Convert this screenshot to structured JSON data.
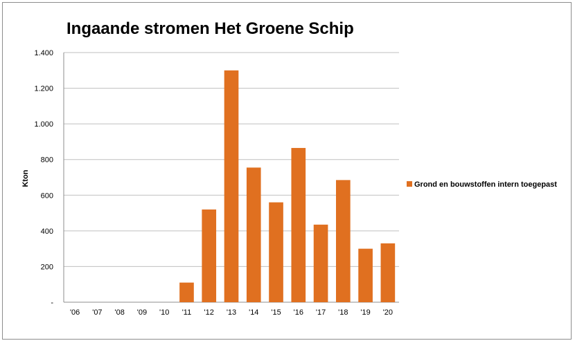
{
  "chart_data": {
    "type": "bar",
    "title": "Ingaande stromen Het Groene Schip",
    "xlabel": "",
    "ylabel": "Kton",
    "categories": [
      "'06",
      "'07",
      "'08",
      "'09",
      "'10",
      "'11",
      "'12",
      "'13",
      "'14",
      "'15",
      "'16",
      "'17",
      "'18",
      "'19",
      "'20"
    ],
    "series": [
      {
        "name": "Grond en bouwstoffen intern toegepast",
        "color": "#e07020",
        "values": [
          0,
          0,
          0,
          0,
          0,
          110,
          520,
          1300,
          755,
          560,
          865,
          435,
          685,
          300,
          330
        ]
      }
    ],
    "ylim": [
      0,
      1400
    ],
    "yticks": [
      0,
      200,
      400,
      600,
      800,
      1000,
      1200,
      1400
    ],
    "ytick_labels": [
      "-",
      "200",
      "400",
      "600",
      "800",
      "1.000",
      "1.200",
      "1.400"
    ],
    "grid": true,
    "legend_position": "right"
  }
}
